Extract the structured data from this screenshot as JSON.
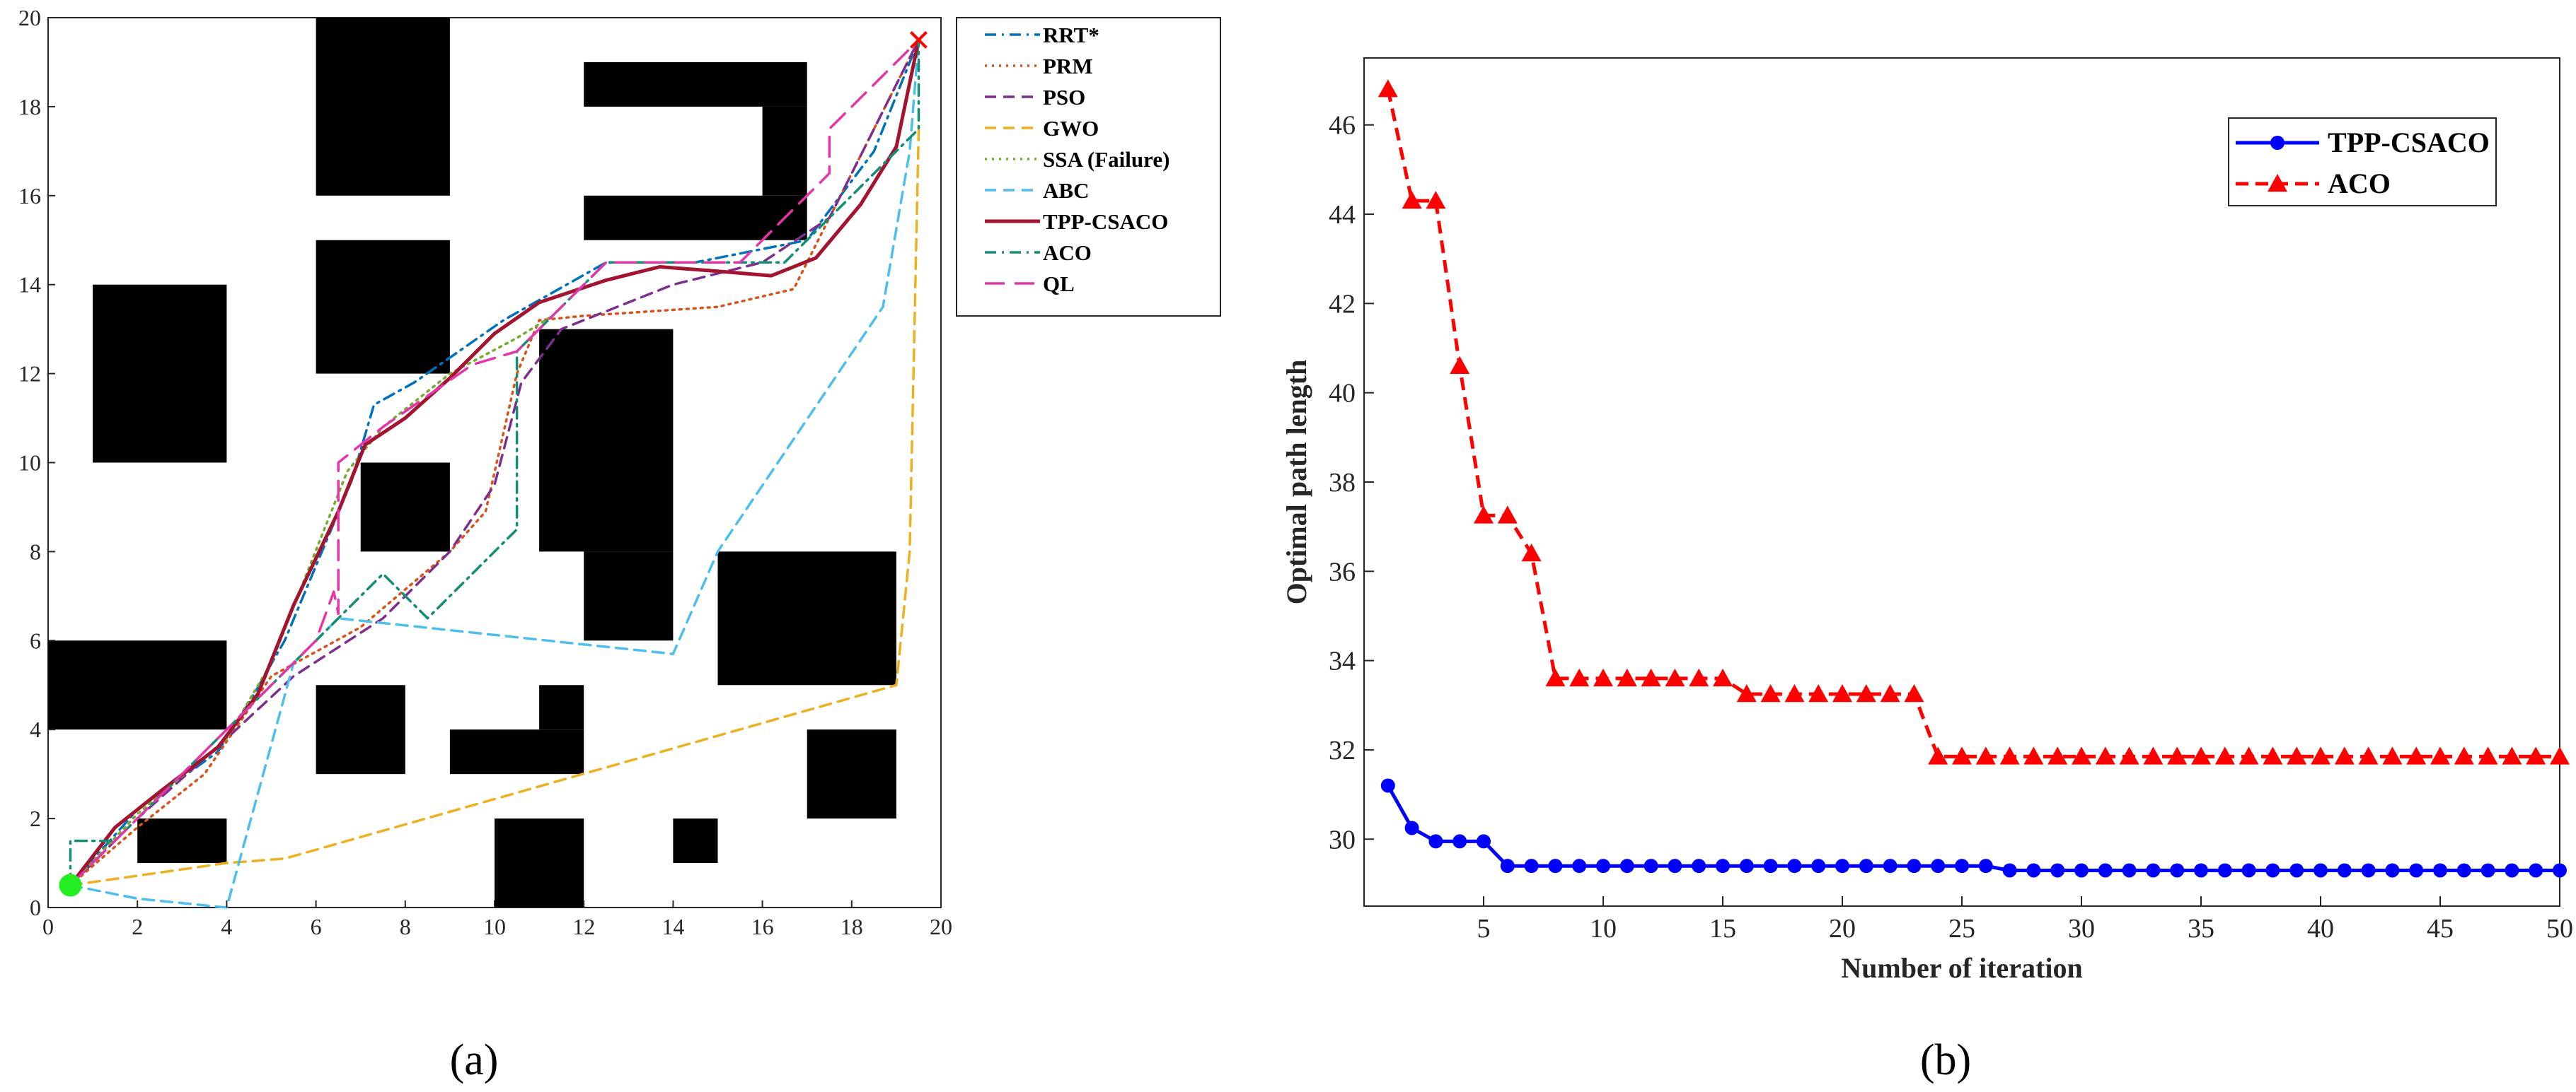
{
  "captions": {
    "a": "(a)",
    "b": "(b)"
  },
  "chart_data": [
    {
      "type": "line",
      "subtype": "path-planning-map",
      "xlim": [
        0,
        20
      ],
      "ylim": [
        0,
        20
      ],
      "xticks": [
        "0",
        "2",
        "4",
        "6",
        "8",
        "10",
        "12",
        "14",
        "16",
        "18",
        "20"
      ],
      "yticks": [
        "0",
        "2",
        "4",
        "6",
        "8",
        "10",
        "12",
        "14",
        "16",
        "18",
        "20"
      ],
      "start": [
        0.5,
        0.5
      ],
      "goal": [
        19.5,
        19.5
      ],
      "legend_position": "outside-right",
      "obstacles": [
        {
          "x0": 6,
          "y0": 16,
          "x1": 9,
          "y1": 20
        },
        {
          "x0": 6,
          "y0": 12,
          "x1": 9,
          "y1": 15
        },
        {
          "x0": 1,
          "y0": 10,
          "x1": 4,
          "y1": 14
        },
        {
          "x0": 0,
          "y0": 4,
          "x1": 4,
          "y1": 6
        },
        {
          "x0": 2,
          "y0": 1,
          "x1": 4,
          "y1": 2
        },
        {
          "x0": 7,
          "y0": 8,
          "x1": 9,
          "y1": 10
        },
        {
          "x0": 6,
          "y0": 3,
          "x1": 8,
          "y1": 5
        },
        {
          "x0": 9,
          "y0": 3,
          "x1": 12,
          "y1": 4
        },
        {
          "x0": 11,
          "y0": 4,
          "x1": 12,
          "y1": 5
        },
        {
          "x0": 10,
          "y0": 0,
          "x1": 12,
          "y1": 2
        },
        {
          "x0": 14,
          "y0": 1,
          "x1": 15,
          "y1": 2
        },
        {
          "x0": 11,
          "y0": 8,
          "x1": 14,
          "y1": 13
        },
        {
          "x0": 12,
          "y0": 6,
          "x1": 14,
          "y1": 8
        },
        {
          "x0": 15,
          "y0": 5,
          "x1": 19,
          "y1": 8
        },
        {
          "x0": 17,
          "y0": 2,
          "x1": 19,
          "y1": 4
        },
        {
          "x0": 12,
          "y0": 18,
          "x1": 17,
          "y1": 19
        },
        {
          "x0": 12,
          "y0": 15,
          "x1": 17,
          "y1": 16
        },
        {
          "x0": 16,
          "y0": 16,
          "x1": 17,
          "y1": 18
        }
      ],
      "series": [
        {
          "name": "RRT*",
          "color": "#0072BD",
          "style": "dashdot",
          "points": [
            [
              0.5,
              0.5
            ],
            [
              2,
              2.2
            ],
            [
              3.8,
              3.5
            ],
            [
              4.5,
              4.6
            ],
            [
              5.3,
              6
            ],
            [
              6.8,
              9.6
            ],
            [
              7.3,
              11.3
            ],
            [
              8.2,
              11.8
            ],
            [
              10.2,
              13.2
            ],
            [
              12.5,
              14.5
            ],
            [
              14.5,
              14.5
            ],
            [
              17,
              15
            ],
            [
              18.5,
              17
            ],
            [
              19.5,
              19.5
            ]
          ]
        },
        {
          "name": "PRM",
          "color": "#D95319",
          "style": "dotted",
          "points": [
            [
              0.5,
              0.5
            ],
            [
              2,
              1.8
            ],
            [
              3.5,
              3
            ],
            [
              5,
              5.2
            ],
            [
              7,
              6.3
            ],
            [
              9,
              8
            ],
            [
              9.8,
              8.9
            ],
            [
              10.5,
              12
            ],
            [
              11,
              13.2
            ],
            [
              12,
              13.3
            ],
            [
              15,
              13.5
            ],
            [
              16.7,
              13.9
            ],
            [
              18,
              16.5
            ],
            [
              19.5,
              19.5
            ]
          ]
        },
        {
          "name": "PSO",
          "color": "#7E2F8E",
          "style": "dashed",
          "points": [
            [
              0.5,
              0.5
            ],
            [
              2,
              2
            ],
            [
              4,
              3.8
            ],
            [
              5.5,
              5.2
            ],
            [
              7.5,
              6.5
            ],
            [
              9,
              8
            ],
            [
              10,
              9.5
            ],
            [
              10.6,
              11.8
            ],
            [
              11.5,
              13
            ],
            [
              14,
              14
            ],
            [
              16,
              14.5
            ],
            [
              17.5,
              15.5
            ],
            [
              18.5,
              17.5
            ],
            [
              19.5,
              19.5
            ]
          ]
        },
        {
          "name": "GWO",
          "color": "#EDB120",
          "style": "dashed",
          "points": [
            [
              0.5,
              0.5
            ],
            [
              4,
              1
            ],
            [
              5.3,
              1.1
            ],
            [
              19,
              5
            ],
            [
              19.3,
              8
            ],
            [
              19.5,
              17.5
            ]
          ]
        },
        {
          "name": "SSA (Failure)",
          "color": "#77AC30",
          "style": "dotted",
          "points": [
            [
              0.5,
              0.5
            ],
            [
              2,
              2.1
            ],
            [
              4,
              3.8
            ],
            [
              5,
              5.5
            ],
            [
              6.7,
              9.8
            ],
            [
              7.5,
              10.8
            ],
            [
              9,
              12
            ],
            [
              10.5,
              12.8
            ],
            [
              11.3,
              13.3
            ]
          ]
        },
        {
          "name": "ABC",
          "color": "#4DBEEE",
          "style": "dashed",
          "points": [
            [
              0.5,
              0.5
            ],
            [
              2,
              0.2
            ],
            [
              4,
              0
            ],
            [
              5.5,
              5.5
            ],
            [
              6.5,
              6.5
            ],
            [
              14,
              5.7
            ],
            [
              15,
              8
            ],
            [
              18.7,
              13.5
            ],
            [
              19.3,
              17
            ],
            [
              19.5,
              19.5
            ]
          ]
        },
        {
          "name": "TPP-CSACO",
          "color": "#A2142F",
          "style": "solid",
          "points": [
            [
              0.5,
              0.5
            ],
            [
              1.5,
              1.8
            ],
            [
              2.5,
              2.6
            ],
            [
              3.8,
              3.6
            ],
            [
              4.7,
              4.8
            ],
            [
              5.5,
              6.8
            ],
            [
              6.5,
              8.9
            ],
            [
              7.1,
              10.4
            ],
            [
              8,
              11
            ],
            [
              9,
              11.9
            ],
            [
              10,
              12.9
            ],
            [
              11,
              13.6
            ],
            [
              12.5,
              14.1
            ],
            [
              13.7,
              14.4
            ],
            [
              15,
              14.3
            ],
            [
              16.2,
              14.2
            ],
            [
              17.2,
              14.6
            ],
            [
              18.2,
              15.8
            ],
            [
              19,
              17.1
            ],
            [
              19.5,
              19.5
            ]
          ]
        },
        {
          "name": "ACO",
          "color": "#138D75",
          "style": "dashdot",
          "points": [
            [
              0.5,
              0.5
            ],
            [
              0.5,
              1.5
            ],
            [
              1.5,
              1.5
            ],
            [
              2.5,
              2.5
            ],
            [
              4,
              4
            ],
            [
              5.5,
              5.5
            ],
            [
              6.5,
              6.5
            ],
            [
              7.5,
              7.5
            ],
            [
              8.5,
              6.5
            ],
            [
              10.5,
              8.5
            ],
            [
              10.5,
              12.5
            ],
            [
              12.5,
              14.5
            ],
            [
              14.5,
              14.5
            ],
            [
              16.5,
              14.5
            ],
            [
              17.5,
              15.5
            ],
            [
              19.5,
              17.5
            ],
            [
              19.5,
              19.5
            ]
          ]
        },
        {
          "name": "QL",
          "color": "#E535AB",
          "style": "longdash",
          "points": [
            [
              0.5,
              0.5
            ],
            [
              1,
              1
            ],
            [
              2,
              2
            ],
            [
              3,
              3
            ],
            [
              4,
              4
            ],
            [
              5,
              5
            ],
            [
              6,
              6
            ],
            [
              6.4,
              7.1
            ],
            [
              6.5,
              6.6
            ],
            [
              6.5,
              10
            ],
            [
              7.5,
              10.8
            ],
            [
              8.5,
              11.5
            ],
            [
              9.5,
              12.2
            ],
            [
              10.5,
              12.5
            ],
            [
              11.5,
              13.5
            ],
            [
              12.5,
              14.5
            ],
            [
              14.5,
              14.5
            ],
            [
              15.5,
              14.5
            ],
            [
              16.5,
              15.5
            ],
            [
              17.5,
              16.5
            ],
            [
              17.5,
              17.5
            ],
            [
              19.5,
              19.5
            ]
          ]
        }
      ]
    },
    {
      "type": "line",
      "xlabel": "Number of iteration",
      "ylabel": "Optimal path length",
      "xlim": [
        0,
        50
      ],
      "ylim": [
        28.5,
        47.5
      ],
      "xticks": [
        "5",
        "10",
        "15",
        "20",
        "25",
        "30",
        "35",
        "40",
        "45",
        "50"
      ],
      "yticks": [
        "30",
        "32",
        "34",
        "36",
        "38",
        "40",
        "42",
        "44",
        "46"
      ],
      "legend_position": "top-right",
      "x": [
        1,
        2,
        3,
        4,
        5,
        6,
        7,
        8,
        9,
        10,
        11,
        12,
        13,
        14,
        15,
        16,
        17,
        18,
        19,
        20,
        21,
        22,
        23,
        24,
        25,
        26,
        27,
        28,
        29,
        30,
        31,
        32,
        33,
        34,
        35,
        36,
        37,
        38,
        39,
        40,
        41,
        42,
        43,
        44,
        45,
        46,
        47,
        48,
        49,
        50
      ],
      "series": [
        {
          "name": "TPP-CSACO",
          "color": "#0000FF",
          "marker": "circle",
          "style": "solid",
          "values": [
            31.2,
            30.25,
            29.95,
            29.95,
            29.95,
            29.4,
            29.4,
            29.4,
            29.4,
            29.4,
            29.4,
            29.4,
            29.4,
            29.4,
            29.4,
            29.4,
            29.4,
            29.4,
            29.4,
            29.4,
            29.4,
            29.4,
            29.4,
            29.4,
            29.4,
            29.4,
            29.3,
            29.3,
            29.3,
            29.3,
            29.3,
            29.3,
            29.3,
            29.3,
            29.3,
            29.3,
            29.3,
            29.3,
            29.3,
            29.3,
            29.3,
            29.3,
            29.3,
            29.3,
            29.3,
            29.3,
            29.3,
            29.3,
            29.3,
            29.3
          ]
        },
        {
          "name": "ACO",
          "color": "#FF0000",
          "marker": "triangle",
          "style": "dashed",
          "values": [
            46.8,
            44.3,
            44.3,
            40.6,
            37.25,
            37.25,
            36.4,
            33.6,
            33.6,
            33.6,
            33.6,
            33.6,
            33.6,
            33.6,
            33.6,
            33.25,
            33.25,
            33.25,
            33.25,
            33.25,
            33.25,
            33.25,
            33.25,
            31.85,
            31.85,
            31.85,
            31.85,
            31.85,
            31.85,
            31.85,
            31.85,
            31.85,
            31.85,
            31.85,
            31.85,
            31.85,
            31.85,
            31.85,
            31.85,
            31.85,
            31.85,
            31.85,
            31.85,
            31.85,
            31.85,
            31.85,
            31.85,
            31.85,
            31.85,
            31.85
          ]
        }
      ]
    }
  ]
}
